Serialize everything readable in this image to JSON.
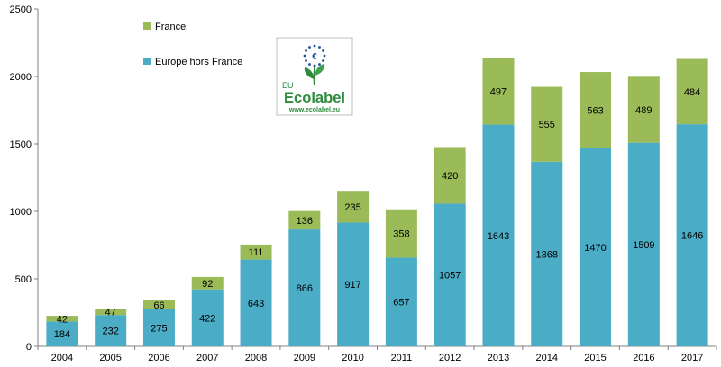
{
  "chart_data": {
    "type": "bar",
    "stacked": true,
    "categories": [
      "2004",
      "2005",
      "2006",
      "2007",
      "2008",
      "2009",
      "2010",
      "2011",
      "2012",
      "2013",
      "2014",
      "2015",
      "2016",
      "2017"
    ],
    "series": [
      {
        "name": "Europe hors France",
        "color": "#4bacc6",
        "values": [
          184,
          232,
          275,
          422,
          643,
          866,
          917,
          657,
          1057,
          1643,
          1368,
          1470,
          1509,
          1646
        ]
      },
      {
        "name": "France",
        "color": "#9bbb59",
        "values": [
          42,
          47,
          66,
          92,
          111,
          136,
          235,
          358,
          420,
          497,
          555,
          563,
          489,
          484
        ]
      }
    ],
    "ylim": [
      0,
      2500
    ],
    "yticks": [
      0,
      500,
      1000,
      1500,
      2000,
      2500
    ],
    "grid": false,
    "legend": {
      "position": "top-left",
      "order": [
        "France",
        "Europe hors France"
      ]
    }
  },
  "logo": {
    "prefix": "EU",
    "name": "Ecolabel",
    "url": "www.ecolabel.eu",
    "symbol": "€",
    "color_green": "#2e8b3e",
    "color_blue": "#1f4e9c"
  }
}
